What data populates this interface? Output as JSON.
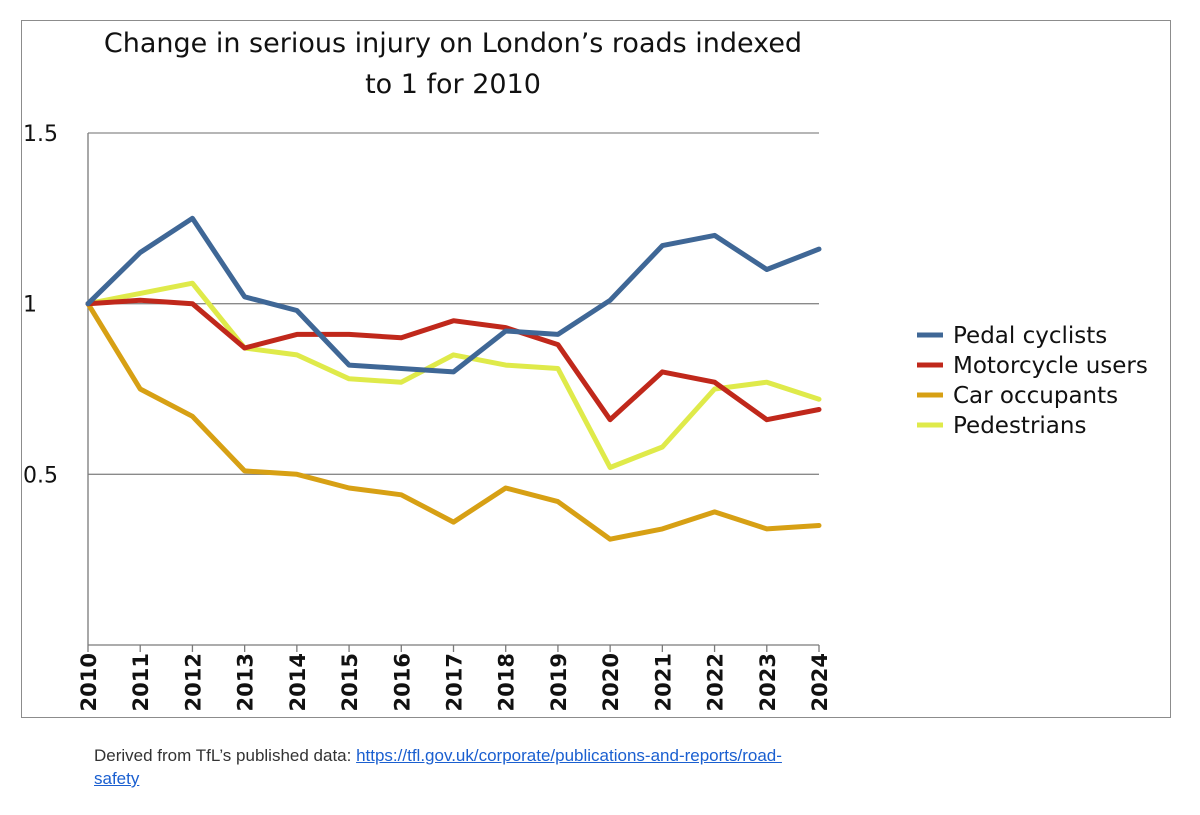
{
  "chart_data": {
    "type": "line",
    "title_lines": [
      "Change in serious injury on London’s roads indexed",
      "to 1 for 2010"
    ],
    "x": [
      "2010",
      "2011",
      "2012",
      "2013",
      "2014",
      "2015",
      "2016",
      "2017",
      "2018",
      "2019",
      "2020",
      "2021",
      "2022",
      "2023",
      "2024"
    ],
    "ylim": [
      0,
      1.5
    ],
    "y_ticks": [
      {
        "value": 1.5,
        "label": "1.5"
      },
      {
        "value": 1,
        "label": "1"
      },
      {
        "value": 0.5,
        "label": "0.5"
      }
    ],
    "grid": true,
    "legend_position": "right",
    "series": [
      {
        "name": "Pedal cyclists",
        "color": "#3f6796",
        "values": [
          1.0,
          1.15,
          1.25,
          1.02,
          0.98,
          0.82,
          0.81,
          0.8,
          0.92,
          0.91,
          1.01,
          1.17,
          1.2,
          1.1,
          1.16
        ]
      },
      {
        "name": "Motorcycle users",
        "color": "#c0281b",
        "values": [
          1.0,
          1.01,
          1.0,
          0.87,
          0.91,
          0.91,
          0.9,
          0.95,
          0.93,
          0.88,
          0.66,
          0.8,
          0.77,
          0.66,
          0.69
        ]
      },
      {
        "name": "Car occupants",
        "color": "#d7a014",
        "values": [
          1.0,
          0.75,
          0.67,
          0.51,
          0.5,
          0.46,
          0.44,
          0.36,
          0.46,
          0.42,
          0.31,
          0.34,
          0.39,
          0.34,
          0.35
        ]
      },
      {
        "name": "Pedestrians",
        "color": "#dfea4a",
        "values": [
          1.0,
          1.03,
          1.06,
          0.87,
          0.85,
          0.78,
          0.77,
          0.85,
          0.82,
          0.81,
          0.52,
          0.58,
          0.75,
          0.77,
          0.72
        ]
      }
    ]
  },
  "source": {
    "prefix": "Derived from TfL’s published data: ",
    "link_text": "https://tfl.gov.uk/corporate/publications-and-reports/road-safety"
  }
}
